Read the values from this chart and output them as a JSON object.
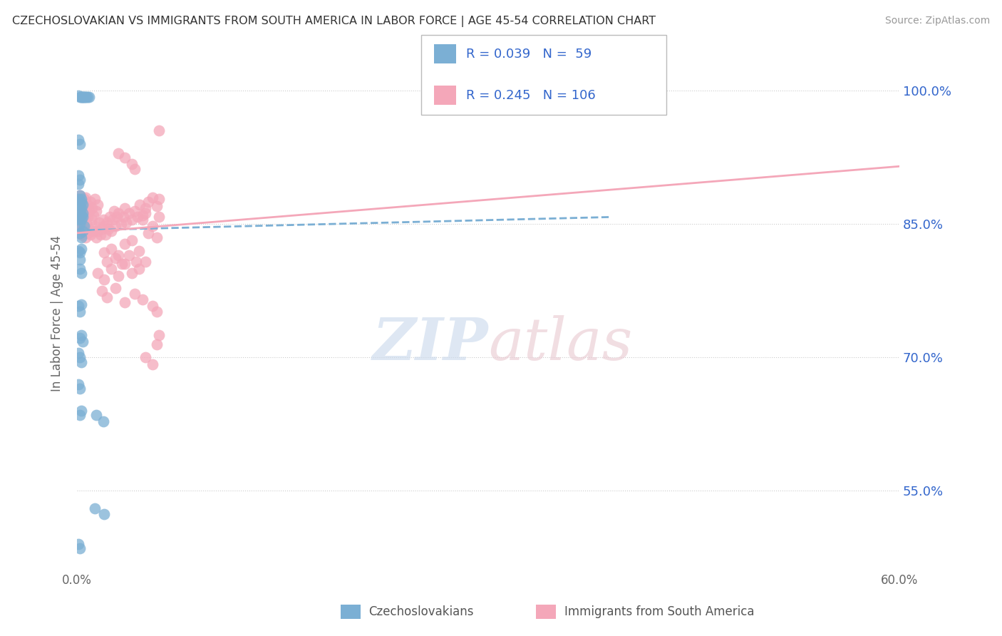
{
  "title": "CZECHOSLOVAKIAN VS IMMIGRANTS FROM SOUTH AMERICA IN LABOR FORCE | AGE 45-54 CORRELATION CHART",
  "source": "Source: ZipAtlas.com",
  "ylabel": "In Labor Force | Age 45-54",
  "xlim": [
    0.0,
    0.6
  ],
  "ylim": [
    0.46,
    1.04
  ],
  "xticks": [
    0.0,
    0.6
  ],
  "xticklabels": [
    "0.0%",
    "60.0%"
  ],
  "yticks_right": [
    0.55,
    0.7,
    0.85,
    1.0
  ],
  "yticks_right_labels": [
    "55.0%",
    "70.0%",
    "85.0%",
    "100.0%"
  ],
  "blue_color": "#7bafd4",
  "pink_color": "#f4a7b9",
  "blue_R": 0.039,
  "blue_N": 59,
  "pink_R": 0.245,
  "pink_N": 106,
  "legend_color": "#3366cc",
  "blue_trend": [
    0.0,
    0.843,
    0.39,
    0.858
  ],
  "pink_trend": [
    0.0,
    0.84,
    0.6,
    0.915
  ],
  "blue_scatter": [
    [
      0.001,
      0.995
    ],
    [
      0.002,
      0.993
    ],
    [
      0.003,
      0.993
    ],
    [
      0.004,
      0.993
    ],
    [
      0.005,
      0.993
    ],
    [
      0.006,
      0.993
    ],
    [
      0.007,
      0.993
    ],
    [
      0.008,
      0.993
    ],
    [
      0.009,
      0.993
    ],
    [
      0.003,
      0.993
    ],
    [
      0.004,
      0.993
    ],
    [
      0.005,
      0.993
    ],
    [
      0.001,
      0.945
    ],
    [
      0.002,
      0.94
    ],
    [
      0.001,
      0.905
    ],
    [
      0.002,
      0.9
    ],
    [
      0.001,
      0.895
    ],
    [
      0.002,
      0.882
    ],
    [
      0.003,
      0.878
    ],
    [
      0.003,
      0.875
    ],
    [
      0.002,
      0.87
    ],
    [
      0.004,
      0.872
    ],
    [
      0.003,
      0.86
    ],
    [
      0.001,
      0.878
    ],
    [
      0.002,
      0.865
    ],
    [
      0.003,
      0.868
    ],
    [
      0.001,
      0.855
    ],
    [
      0.004,
      0.858
    ],
    [
      0.002,
      0.85
    ],
    [
      0.003,
      0.855
    ],
    [
      0.004,
      0.862
    ],
    [
      0.005,
      0.848
    ],
    [
      0.002,
      0.84
    ],
    [
      0.003,
      0.835
    ],
    [
      0.004,
      0.842
    ],
    [
      0.001,
      0.82
    ],
    [
      0.002,
      0.818
    ],
    [
      0.003,
      0.822
    ],
    [
      0.002,
      0.8
    ],
    [
      0.003,
      0.795
    ],
    [
      0.002,
      0.81
    ],
    [
      0.001,
      0.758
    ],
    [
      0.002,
      0.752
    ],
    [
      0.003,
      0.76
    ],
    [
      0.003,
      0.725
    ],
    [
      0.004,
      0.718
    ],
    [
      0.002,
      0.722
    ],
    [
      0.002,
      0.7
    ],
    [
      0.003,
      0.695
    ],
    [
      0.001,
      0.705
    ],
    [
      0.001,
      0.67
    ],
    [
      0.002,
      0.665
    ],
    [
      0.003,
      0.64
    ],
    [
      0.002,
      0.635
    ],
    [
      0.014,
      0.635
    ],
    [
      0.019,
      0.628
    ],
    [
      0.013,
      0.53
    ],
    [
      0.02,
      0.524
    ],
    [
      0.001,
      0.49
    ],
    [
      0.002,
      0.485
    ]
  ],
  "pink_scatter": [
    [
      0.001,
      0.878
    ],
    [
      0.002,
      0.882
    ],
    [
      0.003,
      0.87
    ],
    [
      0.004,
      0.875
    ],
    [
      0.005,
      0.868
    ],
    [
      0.006,
      0.88
    ],
    [
      0.007,
      0.862
    ],
    [
      0.008,
      0.872
    ],
    [
      0.009,
      0.865
    ],
    [
      0.01,
      0.875
    ],
    [
      0.011,
      0.868
    ],
    [
      0.012,
      0.86
    ],
    [
      0.013,
      0.878
    ],
    [
      0.014,
      0.865
    ],
    [
      0.015,
      0.872
    ],
    [
      0.002,
      0.858
    ],
    [
      0.003,
      0.862
    ],
    [
      0.004,
      0.855
    ],
    [
      0.005,
      0.878
    ],
    [
      0.006,
      0.862
    ],
    [
      0.007,
      0.87
    ],
    [
      0.008,
      0.858
    ],
    [
      0.001,
      0.852
    ],
    [
      0.002,
      0.845
    ],
    [
      0.003,
      0.838
    ],
    [
      0.004,
      0.848
    ],
    [
      0.005,
      0.842
    ],
    [
      0.006,
      0.835
    ],
    [
      0.007,
      0.852
    ],
    [
      0.008,
      0.84
    ],
    [
      0.009,
      0.845
    ],
    [
      0.01,
      0.838
    ],
    [
      0.011,
      0.855
    ],
    [
      0.012,
      0.842
    ],
    [
      0.013,
      0.848
    ],
    [
      0.014,
      0.835
    ],
    [
      0.015,
      0.842
    ],
    [
      0.016,
      0.852
    ],
    [
      0.017,
      0.838
    ],
    [
      0.018,
      0.845
    ],
    [
      0.019,
      0.855
    ],
    [
      0.02,
      0.848
    ],
    [
      0.021,
      0.838
    ],
    [
      0.022,
      0.852
    ],
    [
      0.023,
      0.845
    ],
    [
      0.024,
      0.858
    ],
    [
      0.025,
      0.842
    ],
    [
      0.026,
      0.855
    ],
    [
      0.027,
      0.865
    ],
    [
      0.028,
      0.848
    ],
    [
      0.029,
      0.858
    ],
    [
      0.03,
      0.862
    ],
    [
      0.032,
      0.85
    ],
    [
      0.034,
      0.858
    ],
    [
      0.035,
      0.868
    ],
    [
      0.036,
      0.852
    ],
    [
      0.038,
      0.862
    ],
    [
      0.04,
      0.855
    ],
    [
      0.042,
      0.865
    ],
    [
      0.044,
      0.858
    ],
    [
      0.046,
      0.872
    ],
    [
      0.048,
      0.86
    ],
    [
      0.05,
      0.868
    ],
    [
      0.02,
      0.818
    ],
    [
      0.025,
      0.822
    ],
    [
      0.03,
      0.815
    ],
    [
      0.035,
      0.828
    ],
    [
      0.04,
      0.832
    ],
    [
      0.045,
      0.82
    ],
    [
      0.022,
      0.808
    ],
    [
      0.028,
      0.812
    ],
    [
      0.033,
      0.805
    ],
    [
      0.038,
      0.815
    ],
    [
      0.043,
      0.808
    ],
    [
      0.015,
      0.795
    ],
    [
      0.02,
      0.788
    ],
    [
      0.025,
      0.8
    ],
    [
      0.03,
      0.792
    ],
    [
      0.035,
      0.805
    ],
    [
      0.04,
      0.795
    ],
    [
      0.045,
      0.8
    ],
    [
      0.05,
      0.808
    ],
    [
      0.018,
      0.775
    ],
    [
      0.022,
      0.768
    ],
    [
      0.028,
      0.778
    ],
    [
      0.035,
      0.762
    ],
    [
      0.042,
      0.772
    ],
    [
      0.048,
      0.765
    ],
    [
      0.055,
      0.758
    ],
    [
      0.058,
      0.752
    ],
    [
      0.052,
      0.84
    ],
    [
      0.055,
      0.848
    ],
    [
      0.058,
      0.835
    ],
    [
      0.052,
      0.875
    ],
    [
      0.055,
      0.88
    ],
    [
      0.058,
      0.87
    ],
    [
      0.06,
      0.955
    ],
    [
      0.06,
      0.878
    ],
    [
      0.06,
      0.858
    ],
    [
      0.06,
      0.725
    ],
    [
      0.058,
      0.715
    ],
    [
      0.05,
      0.7
    ],
    [
      0.055,
      0.692
    ],
    [
      0.048,
      0.855
    ],
    [
      0.05,
      0.862
    ],
    [
      0.04,
      0.918
    ],
    [
      0.042,
      0.912
    ],
    [
      0.03,
      0.93
    ],
    [
      0.035,
      0.925
    ]
  ]
}
